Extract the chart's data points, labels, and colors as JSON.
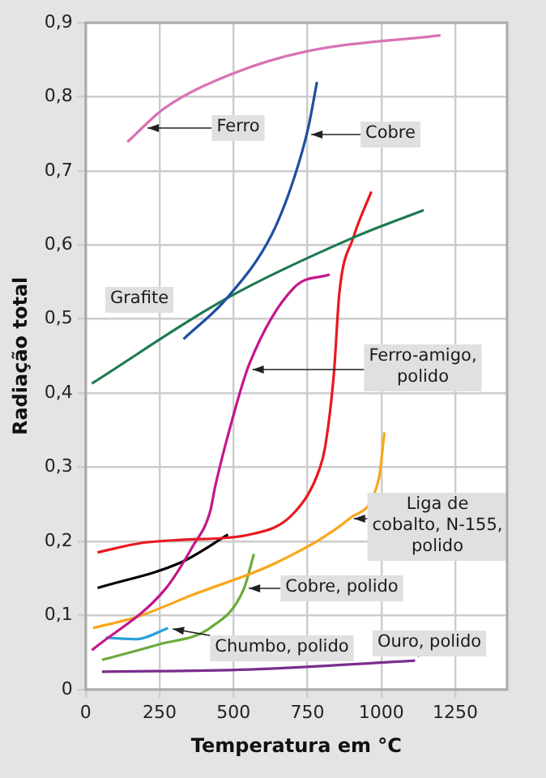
{
  "chart_data": {
    "type": "line",
    "xlabel": "Temperatura em °C",
    "ylabel": "Radiação total",
    "xlim": [
      0,
      1425
    ],
    "ylim": [
      0,
      0.9
    ],
    "xticks": [
      0,
      250,
      500,
      750,
      1000,
      1250
    ],
    "yticks": [
      {
        "value": 0,
        "label": "0"
      },
      {
        "value": 0.1,
        "label": "0,1"
      },
      {
        "value": 0.2,
        "label": "0,2"
      },
      {
        "value": 0.3,
        "label": "0,3"
      },
      {
        "value": 0.4,
        "label": "0,4"
      },
      {
        "value": 0.5,
        "label": "0,5"
      },
      {
        "value": 0.6,
        "label": "0,6"
      },
      {
        "value": 0.7,
        "label": "0,7"
      },
      {
        "value": 0.8,
        "label": "0,8"
      },
      {
        "value": 0.9,
        "label": "0,9"
      }
    ],
    "grid": true,
    "legend": false,
    "marker": "none",
    "line_style": "solid",
    "series": [
      {
        "name": "Ferro",
        "color": "#d873b5",
        "x": [
          141,
          268,
          496,
          744,
          1200
        ],
        "values": [
          0.739,
          0.785,
          0.831,
          0.861,
          0.883
        ]
      },
      {
        "name": "Cobre",
        "color": "#1f4fa0",
        "x": [
          331,
          477,
          629,
          706,
          753,
          782
        ],
        "values": [
          0.473,
          0.528,
          0.614,
          0.692,
          0.759,
          0.82
        ]
      },
      {
        "name": "Grafite",
        "color": "#1e7a4e",
        "x": [
          21,
          477,
          905,
          1143
        ],
        "values": [
          0.413,
          0.528,
          0.61,
          0.647
        ]
      },
      {
        "color": "#e8191f",
        "x": [
          40,
          192,
          325,
          553,
          706,
          791,
          810,
          839,
          858,
          905,
          966
        ],
        "values": [
          0.185,
          0.198,
          0.202,
          0.209,
          0.239,
          0.298,
          0.328,
          0.425,
          0.536,
          0.61,
          0.672
        ]
      },
      {
        "name": "Ferro-amigo, polido",
        "color": "#c4168c",
        "x": [
          21,
          268,
          363,
          420,
          439,
          496,
          553,
          706,
          825
        ],
        "values": [
          0.053,
          0.135,
          0.194,
          0.239,
          0.276,
          0.365,
          0.439,
          0.543,
          0.56
        ]
      },
      {
        "color": "#000000",
        "x": [
          40,
          325,
          481
        ],
        "values": [
          0.137,
          0.172,
          0.209
        ]
      },
      {
        "name": "Liga de cobalto, N-155, polido",
        "color": "#f9a61a",
        "x": [
          25,
          173,
          363,
          649,
          896,
          991,
          1010
        ],
        "values": [
          0.083,
          0.098,
          0.128,
          0.172,
          0.232,
          0.284,
          0.347
        ]
      },
      {
        "name": "Cobre, polido",
        "color": "#6aaa3a",
        "x": [
          55,
          249,
          420,
          534,
          569
        ],
        "values": [
          0.04,
          0.061,
          0.083,
          0.135,
          0.183
        ]
      },
      {
        "name": "Chumbo, polido",
        "color": "#2aa0dc",
        "x": [
          68,
          173,
          278
        ],
        "values": [
          0.07,
          0.068,
          0.083
        ]
      },
      {
        "name": "Ouro, polido",
        "color": "#7b2d8e",
        "x": [
          55,
          553,
          1114
        ],
        "values": [
          0.024,
          0.027,
          0.039
        ]
      }
    ]
  }
}
